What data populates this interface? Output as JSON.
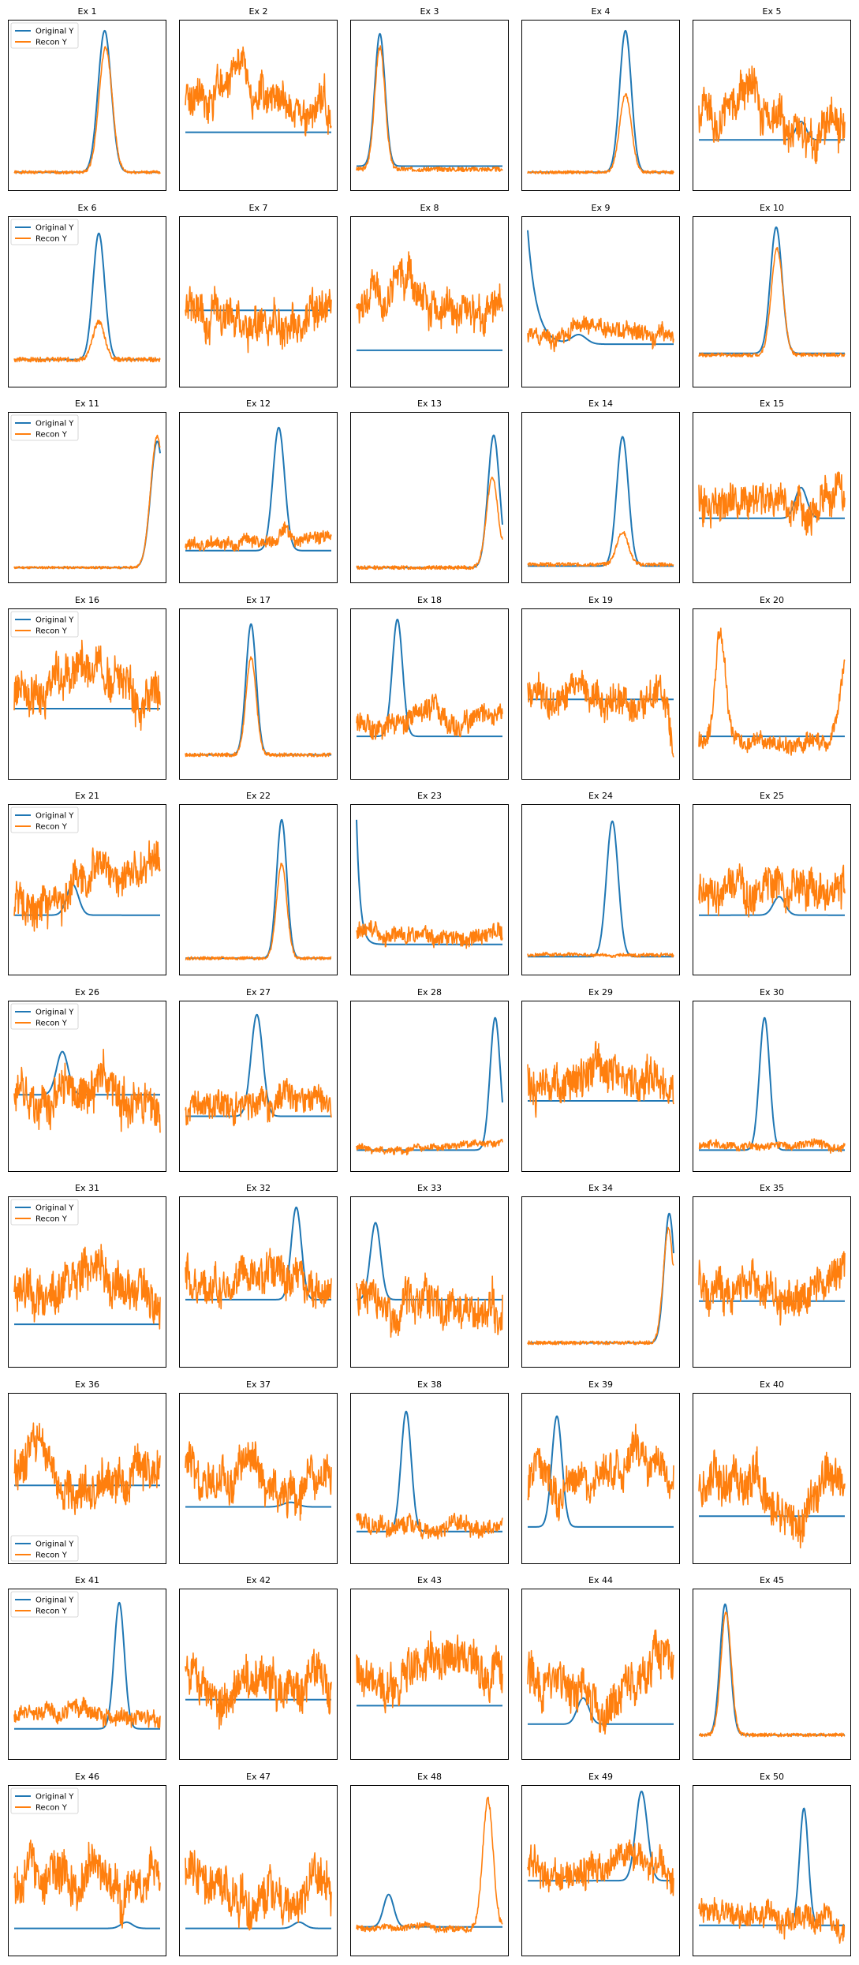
{
  "chart_data": {
    "type": "line",
    "layout": "grid",
    "grid_rows": 10,
    "grid_cols": 5,
    "axis_ticks": "hidden",
    "grid": false,
    "colors": {
      "original": "#1f77b4",
      "recon": "#ff7f0e",
      "frame": "#000000"
    },
    "legend": {
      "entries": [
        "Original Y",
        "Recon Y"
      ],
      "shown_in": "first column of every row"
    },
    "series_names": {
      "original": "Original Y",
      "recon": "Recon Y"
    },
    "panels": [
      {
        "title": "Ex 1",
        "legend": "upper-left",
        "original": {
          "kind": "peak",
          "center": 0.62,
          "width": 0.045,
          "height": 0.92,
          "base": 0.06
        },
        "recon": {
          "kind": "follow",
          "scale": 0.88,
          "offset": 0,
          "shift": 0.005,
          "noise": 0.01,
          "seed": 1
        }
      },
      {
        "title": "Ex 2",
        "original": {
          "kind": "flat",
          "base": 0.32
        },
        "recon": {
          "kind": "noise",
          "mean": 0.58,
          "amp": 0.34,
          "noise": 0.1,
          "seed": 2
        }
      },
      {
        "title": "Ex 3",
        "original": {
          "kind": "peak",
          "center": 0.16,
          "width": 0.035,
          "height": 0.86,
          "base": 0.1
        },
        "recon": {
          "kind": "follow",
          "scale": 0.92,
          "offset": -0.02,
          "shift": 0,
          "noise": 0.015,
          "seed": 3
        }
      },
      {
        "title": "Ex 4",
        "original": {
          "kind": "peak",
          "center": 0.67,
          "width": 0.04,
          "height": 0.92,
          "base": 0.06
        },
        "recon": {
          "kind": "follow",
          "scale": 0.55,
          "offset": 0,
          "shift": 0,
          "noise": 0.01,
          "seed": 4
        }
      },
      {
        "title": "Ex 5",
        "original": {
          "kind": "peak",
          "center": 0.7,
          "width": 0.035,
          "height": 0.12,
          "base": 0.27
        },
        "recon": {
          "kind": "noise",
          "mean": 0.4,
          "amp": 0.3,
          "noise": 0.11,
          "seed": 5
        }
      },
      {
        "title": "Ex 6",
        "legend": "upper-left",
        "original": {
          "kind": "peak",
          "center": 0.58,
          "width": 0.04,
          "height": 0.82,
          "base": 0.12
        },
        "recon": {
          "kind": "follow",
          "scale": 0.3,
          "offset": 0,
          "shift": 0,
          "noise": 0.015,
          "seed": 6
        }
      },
      {
        "title": "Ex 7",
        "original": {
          "kind": "flat",
          "base": 0.44
        },
        "recon": {
          "kind": "noise",
          "mean": 0.5,
          "amp": 0.3,
          "noise": 0.1,
          "seed": 7
        }
      },
      {
        "title": "Ex 8",
        "original": {
          "kind": "flat",
          "base": 0.18
        },
        "recon": {
          "kind": "noise",
          "mean": 0.46,
          "amp": 0.32,
          "noise": 0.1,
          "seed": 8
        }
      },
      {
        "title": "Ex 9",
        "original": {
          "kind": "decay",
          "start": 0.96,
          "rate": 0.06,
          "base": 0.22,
          "bump_center": 0.35,
          "bump_height": 0.06
        },
        "recon": {
          "kind": "noise",
          "mean": 0.28,
          "amp": 0.14,
          "noise": 0.05,
          "seed": 9
        }
      },
      {
        "title": "Ex 10",
        "original": {
          "kind": "peak",
          "center": 0.53,
          "width": 0.04,
          "height": 0.82,
          "base": 0.16
        },
        "recon": {
          "kind": "follow",
          "scale": 0.84,
          "offset": -0.01,
          "shift": 0.005,
          "noise": 0.012,
          "seed": 10
        }
      },
      {
        "title": "Ex 11",
        "legend": "upper-left",
        "original": {
          "kind": "edge",
          "center": 0.98,
          "width": 0.045,
          "height": 0.82,
          "base": 0.04
        },
        "recon": {
          "kind": "follow",
          "scale": 1.04,
          "offset": 0,
          "shift": 0,
          "noise": 0.008,
          "seed": 11
        }
      },
      {
        "title": "Ex 12",
        "original": {
          "kind": "peak",
          "center": 0.64,
          "width": 0.04,
          "height": 0.8,
          "base": 0.15
        },
        "recon": {
          "kind": "noise",
          "mean": 0.18,
          "amp": 0.1,
          "noise": 0.035,
          "seed": 12,
          "bump_center": 0.68,
          "bump_height": 0.12
        }
      },
      {
        "title": "Ex 13",
        "original": {
          "kind": "edge",
          "center": 0.94,
          "width": 0.04,
          "height": 0.86,
          "base": 0.04
        },
        "recon": {
          "kind": "follow",
          "scale": 0.68,
          "offset": 0,
          "shift": -0.01,
          "noise": 0.012,
          "seed": 13
        }
      },
      {
        "title": "Ex 14",
        "original": {
          "kind": "peak",
          "center": 0.65,
          "width": 0.04,
          "height": 0.84,
          "base": 0.05
        },
        "recon": {
          "kind": "follow",
          "scale": 0.25,
          "offset": 0.01,
          "shift": 0,
          "noise": 0.012,
          "seed": 14
        }
      },
      {
        "title": "Ex 15",
        "original": {
          "kind": "peak",
          "center": 0.7,
          "width": 0.04,
          "height": 0.2,
          "base": 0.36
        },
        "recon": {
          "kind": "noise",
          "mean": 0.5,
          "amp": 0.28,
          "noise": 0.1,
          "seed": 15
        }
      },
      {
        "title": "Ex 16",
        "legend": "upper-left",
        "original": {
          "kind": "flat",
          "base": 0.4
        },
        "recon": {
          "kind": "noise",
          "mean": 0.5,
          "amp": 0.32,
          "noise": 0.12,
          "seed": 16
        }
      },
      {
        "title": "Ex 17",
        "original": {
          "kind": "peak",
          "center": 0.45,
          "width": 0.035,
          "height": 0.85,
          "base": 0.1
        },
        "recon": {
          "kind": "follow",
          "scale": 0.74,
          "offset": 0,
          "shift": 0,
          "noise": 0.012,
          "seed": 17
        }
      },
      {
        "title": "Ex 18",
        "original": {
          "kind": "peak",
          "center": 0.28,
          "width": 0.035,
          "height": 0.76,
          "base": 0.22
        },
        "recon": {
          "kind": "noise",
          "mean": 0.28,
          "amp": 0.16,
          "noise": 0.06,
          "seed": 18
        }
      },
      {
        "title": "Ex 19",
        "original": {
          "kind": "flat",
          "base": 0.46
        },
        "recon": {
          "kind": "noise",
          "mean": 0.5,
          "amp": 0.26,
          "noise": 0.09,
          "seed": 19,
          "tail_drop": 0.35
        }
      },
      {
        "title": "Ex 20",
        "original": {
          "kind": "flat",
          "base": 0.22
        },
        "recon": {
          "kind": "noise",
          "mean": 0.2,
          "amp": 0.12,
          "noise": 0.05,
          "seed": 20,
          "bump_center": 0.15,
          "bump_height": 0.68,
          "tail_rise": 0.55
        }
      },
      {
        "title": "Ex 21",
        "legend": "upper-left",
        "original": {
          "kind": "peak",
          "center": 0.4,
          "width": 0.04,
          "height": 0.2,
          "base": 0.33
        },
        "recon": {
          "kind": "noise",
          "mean": 0.52,
          "amp": 0.3,
          "noise": 0.1,
          "seed": 21,
          "trend": 0.25
        }
      },
      {
        "title": "Ex 22",
        "original": {
          "kind": "peak",
          "center": 0.66,
          "width": 0.035,
          "height": 0.9,
          "base": 0.05
        },
        "recon": {
          "kind": "follow",
          "scale": 0.68,
          "offset": 0,
          "shift": 0,
          "noise": 0.01,
          "seed": 22
        }
      },
      {
        "title": "Ex 23",
        "original": {
          "kind": "decay",
          "start": 0.95,
          "rate": 0.025,
          "base": 0.14
        },
        "recon": {
          "kind": "noise",
          "mean": 0.2,
          "amp": 0.1,
          "noise": 0.05,
          "seed": 23
        }
      },
      {
        "title": "Ex 24",
        "original": {
          "kind": "peak",
          "center": 0.58,
          "width": 0.04,
          "height": 0.88,
          "base": 0.06
        },
        "recon": {
          "kind": "noise",
          "mean": 0.07,
          "amp": 0.02,
          "noise": 0.01,
          "seed": 24
        }
      },
      {
        "title": "Ex 25",
        "original": {
          "kind": "peak",
          "center": 0.55,
          "width": 0.04,
          "height": 0.12,
          "base": 0.33
        },
        "recon": {
          "kind": "noise",
          "mean": 0.5,
          "amp": 0.28,
          "noise": 0.1,
          "seed": 25
        }
      },
      {
        "title": "Ex 26",
        "legend": "upper-left",
        "original": {
          "kind": "peak",
          "center": 0.33,
          "width": 0.04,
          "height": 0.28,
          "base": 0.44
        },
        "recon": {
          "kind": "noise",
          "mean": 0.5,
          "amp": 0.32,
          "noise": 0.12,
          "seed": 26
        }
      },
      {
        "title": "Ex 27",
        "original": {
          "kind": "peak",
          "center": 0.49,
          "width": 0.04,
          "height": 0.66,
          "base": 0.3
        },
        "recon": {
          "kind": "noise",
          "mean": 0.35,
          "amp": 0.22,
          "noise": 0.08,
          "seed": 27
        }
      },
      {
        "title": "Ex 28",
        "original": {
          "kind": "edge",
          "center": 0.95,
          "width": 0.035,
          "height": 0.86,
          "base": 0.08
        },
        "recon": {
          "kind": "noise",
          "mean": 0.1,
          "amp": 0.05,
          "noise": 0.02,
          "seed": 28
        }
      },
      {
        "title": "Ex 29",
        "original": {
          "kind": "flat",
          "base": 0.4
        },
        "recon": {
          "kind": "noise",
          "mean": 0.5,
          "amp": 0.32,
          "noise": 0.11,
          "seed": 29
        }
      },
      {
        "title": "Ex 30",
        "original": {
          "kind": "peak",
          "center": 0.45,
          "width": 0.035,
          "height": 0.86,
          "base": 0.08
        },
        "recon": {
          "kind": "noise",
          "mean": 0.1,
          "amp": 0.05,
          "noise": 0.025,
          "seed": 30
        }
      },
      {
        "title": "Ex 31",
        "legend": "upper-left",
        "original": {
          "kind": "flat",
          "base": 0.22
        },
        "recon": {
          "kind": "noise",
          "mean": 0.45,
          "amp": 0.35,
          "noise": 0.11,
          "seed": 31
        }
      },
      {
        "title": "Ex 32",
        "original": {
          "kind": "peak",
          "center": 0.76,
          "width": 0.035,
          "height": 0.6,
          "base": 0.38
        },
        "recon": {
          "kind": "noise",
          "mean": 0.58,
          "amp": 0.3,
          "noise": 0.1,
          "seed": 32
        }
      },
      {
        "title": "Ex 33",
        "original": {
          "kind": "peak",
          "center": 0.13,
          "width": 0.035,
          "height": 0.5,
          "base": 0.38
        },
        "recon": {
          "kind": "noise",
          "mean": 0.42,
          "amp": 0.32,
          "noise": 0.11,
          "seed": 33
        }
      },
      {
        "title": "Ex 34",
        "original": {
          "kind": "edge",
          "center": 0.97,
          "width": 0.035,
          "height": 0.84,
          "base": 0.1
        },
        "recon": {
          "kind": "follow",
          "scale": 0.88,
          "offset": 0,
          "shift": -0.005,
          "noise": 0.012,
          "seed": 34
        }
      },
      {
        "title": "Ex 35",
        "original": {
          "kind": "flat",
          "base": 0.37
        },
        "recon": {
          "kind": "noise",
          "mean": 0.5,
          "amp": 0.3,
          "noise": 0.11,
          "seed": 35
        }
      },
      {
        "title": "Ex 36",
        "legend": "lower-left",
        "original": {
          "kind": "flat",
          "base": 0.45
        },
        "recon": {
          "kind": "noise",
          "mean": 0.52,
          "amp": 0.32,
          "noise": 0.12,
          "seed": 36
        }
      },
      {
        "title": "Ex 37",
        "original": {
          "kind": "peak",
          "center": 0.72,
          "width": 0.05,
          "height": 0.03,
          "base": 0.31
        },
        "recon": {
          "kind": "noise",
          "mean": 0.5,
          "amp": 0.32,
          "noise": 0.11,
          "seed": 37
        }
      },
      {
        "title": "Ex 38",
        "original": {
          "kind": "peak",
          "center": 0.34,
          "width": 0.035,
          "height": 0.78,
          "base": 0.15
        },
        "recon": {
          "kind": "noise",
          "mean": 0.22,
          "amp": 0.12,
          "noise": 0.05,
          "seed": 38
        }
      },
      {
        "title": "Ex 39",
        "original": {
          "kind": "peak",
          "center": 0.2,
          "width": 0.035,
          "height": 0.72,
          "base": 0.18
        },
        "recon": {
          "kind": "noise",
          "mean": 0.45,
          "amp": 0.3,
          "noise": 0.1,
          "seed": 39
        }
      },
      {
        "title": "Ex 40",
        "original": {
          "kind": "flat",
          "base": 0.25
        },
        "recon": {
          "kind": "noise",
          "mean": 0.48,
          "amp": 0.35,
          "noise": 0.12,
          "seed": 40
        }
      },
      {
        "title": "Ex 41",
        "legend": "upper-left",
        "original": {
          "kind": "peak",
          "center": 0.72,
          "width": 0.035,
          "height": 0.82,
          "base": 0.14
        },
        "recon": {
          "kind": "noise",
          "mean": 0.22,
          "amp": 0.1,
          "noise": 0.05,
          "seed": 41
        }
      },
      {
        "title": "Ex 42",
        "original": {
          "kind": "flat",
          "base": 0.33
        },
        "recon": {
          "kind": "noise",
          "mean": 0.45,
          "amp": 0.32,
          "noise": 0.12,
          "seed": 42
        }
      },
      {
        "title": "Ex 43",
        "original": {
          "kind": "flat",
          "base": 0.29
        },
        "recon": {
          "kind": "noise",
          "mean": 0.5,
          "amp": 0.32,
          "noise": 0.11,
          "seed": 43
        }
      },
      {
        "title": "Ex 44",
        "original": {
          "kind": "peak",
          "center": 0.38,
          "width": 0.04,
          "height": 0.17,
          "base": 0.17
        },
        "recon": {
          "kind": "noise",
          "mean": 0.5,
          "amp": 0.35,
          "noise": 0.12,
          "seed": 44
        }
      },
      {
        "title": "Ex 45",
        "original": {
          "kind": "peak",
          "center": 0.18,
          "width": 0.035,
          "height": 0.85,
          "base": 0.1
        },
        "recon": {
          "kind": "follow",
          "scale": 0.94,
          "offset": 0,
          "shift": 0.005,
          "noise": 0.012,
          "seed": 45
        }
      },
      {
        "title": "Ex 46",
        "legend": "upper-left",
        "original": {
          "kind": "peak",
          "center": 0.77,
          "width": 0.04,
          "height": 0.04,
          "base": 0.12
        },
        "recon": {
          "kind": "noise",
          "mean": 0.45,
          "amp": 0.35,
          "noise": 0.12,
          "seed": 46
        }
      },
      {
        "title": "Ex 47",
        "original": {
          "kind": "peak",
          "center": 0.78,
          "width": 0.04,
          "height": 0.04,
          "base": 0.12
        },
        "recon": {
          "kind": "noise",
          "mean": 0.45,
          "amp": 0.33,
          "noise": 0.12,
          "seed": 47
        }
      },
      {
        "title": "Ex 48",
        "original": {
          "kind": "peak",
          "center": 0.22,
          "width": 0.035,
          "height": 0.21,
          "base": 0.13
        },
        "recon": {
          "kind": "noise",
          "mean": 0.13,
          "amp": 0.04,
          "noise": 0.02,
          "seed": 48,
          "bump_center": 0.9,
          "bump_height": 0.82
        }
      },
      {
        "title": "Ex 49",
        "original": {
          "kind": "peak",
          "center": 0.78,
          "width": 0.04,
          "height": 0.58,
          "base": 0.43
        },
        "recon": {
          "kind": "noise",
          "mean": 0.55,
          "amp": 0.22,
          "noise": 0.09,
          "seed": 49
        }
      },
      {
        "title": "Ex 50",
        "original": {
          "kind": "peak",
          "center": 0.72,
          "width": 0.03,
          "height": 0.76,
          "base": 0.14
        },
        "recon": {
          "kind": "noise",
          "mean": 0.25,
          "amp": 0.16,
          "noise": 0.07,
          "seed": 50
        }
      }
    ]
  }
}
